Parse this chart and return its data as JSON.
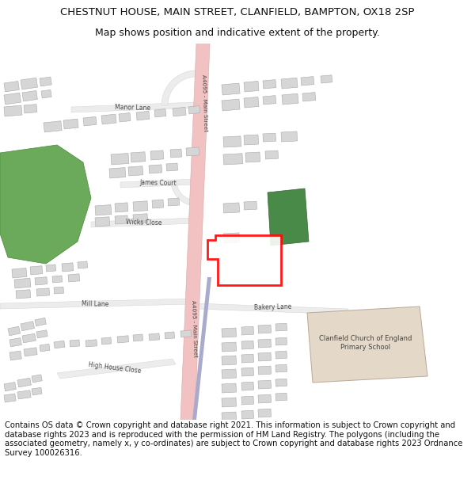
{
  "title_line1": "CHESTNUT HOUSE, MAIN STREET, CLANFIELD, BAMPTON, OX18 2SP",
  "title_line2": "Map shows position and indicative extent of the property.",
  "footer": "Contains OS data © Crown copyright and database right 2021. This information is subject to Crown copyright and database rights 2023 and is reproduced with the permission of HM Land Registry. The polygons (including the associated geometry, namely x, y co-ordinates) are subject to Crown copyright and database rights 2023 Ordnance Survey 100026316.",
  "bg": "#ffffff",
  "map_bg": "#f5f3ee",
  "road_pink": "#f2c2c2",
  "road_blue": "#9999bb",
  "road_minor_fill": "#ececec",
  "road_minor_edge": "#d0d0d0",
  "bldg_fill": "#d6d6d6",
  "bldg_edge": "#aaaaaa",
  "green1": "#6aaa5a",
  "green2": "#4a8a48",
  "school_fill": "#e4d8c8",
  "school_edge": "#bba898",
  "plot_edge": "#ff0000",
  "plot_fill": "#ffffff",
  "tc": "#444444",
  "title_fs": 9.5,
  "sub_fs": 9.0,
  "footer_fs": 7.2,
  "lbl_fs": 5.5
}
